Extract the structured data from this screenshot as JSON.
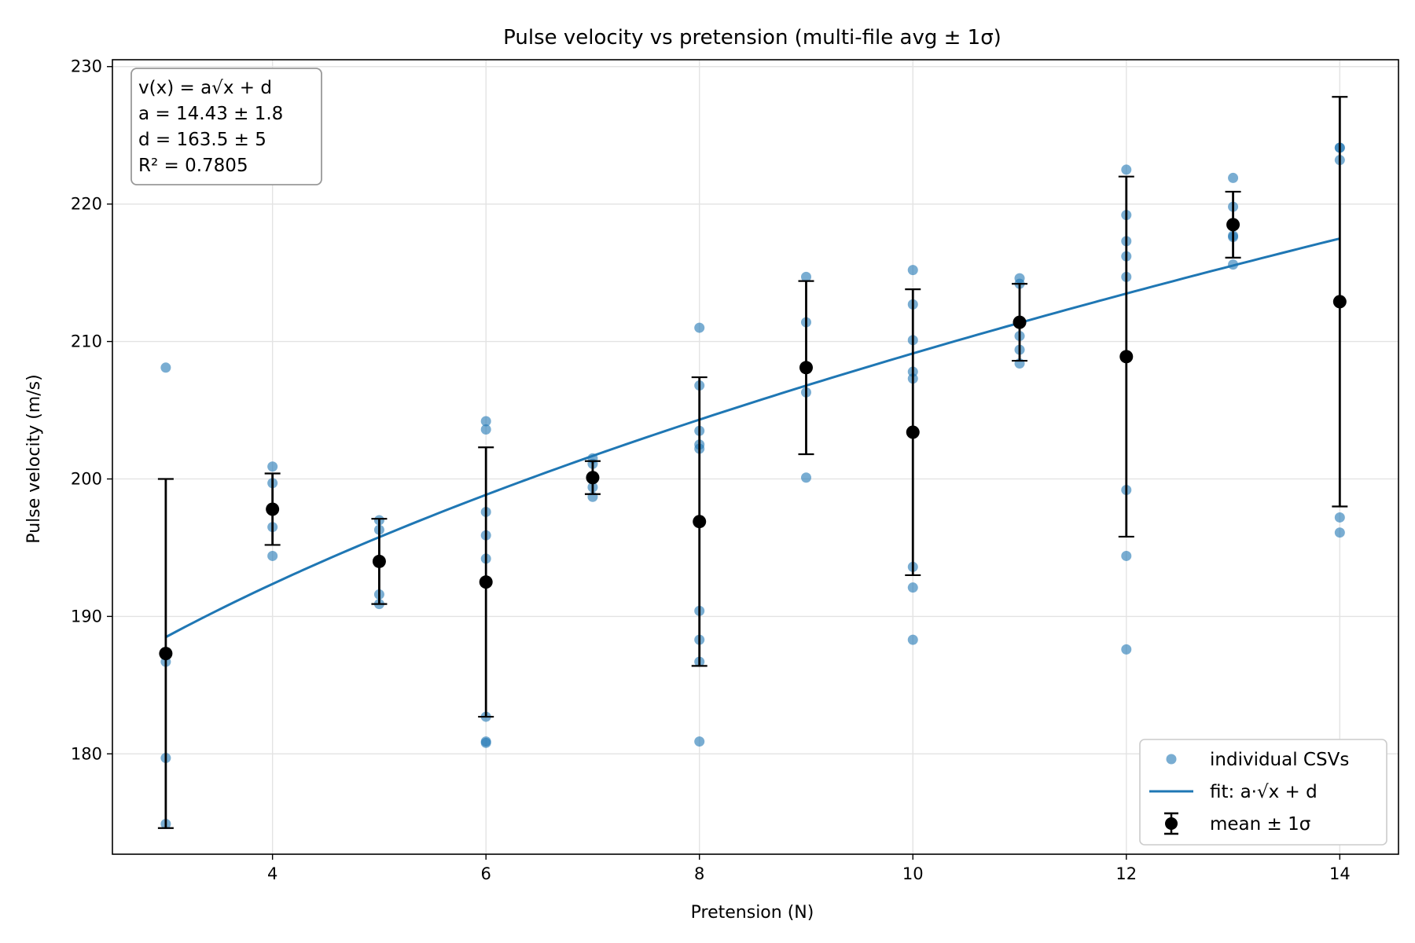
{
  "chart_data": {
    "type": "scatter",
    "title": "Pulse velocity vs pretension (multi-file avg ± 1σ)",
    "xlabel": "Pretension (N)",
    "ylabel": "Pulse velocity (m/s)",
    "xlim": [
      2.5,
      14.55
    ],
    "ylim": [
      172.7,
      230.5
    ],
    "xticks": [
      4,
      6,
      8,
      10,
      12,
      14
    ],
    "yticks": [
      180,
      190,
      200,
      210,
      220,
      230
    ],
    "grid": true,
    "legend_position": "lower-right",
    "colors": {
      "individual": "#1f77b4",
      "fit": "#1f77b4",
      "mean": "#000000"
    },
    "series": [
      {
        "name": "individual CSVs",
        "kind": "scatter",
        "points": [
          [
            3,
            208.1
          ],
          [
            3,
            186.7
          ],
          [
            3,
            179.7
          ],
          [
            3,
            174.9
          ],
          [
            4,
            200.9
          ],
          [
            4,
            199.7
          ],
          [
            4,
            196.5
          ],
          [
            4,
            194.4
          ],
          [
            5,
            197.0
          ],
          [
            5,
            196.3
          ],
          [
            5,
            191.6
          ],
          [
            5,
            190.9
          ],
          [
            6,
            204.2
          ],
          [
            6,
            203.6
          ],
          [
            6,
            197.6
          ],
          [
            6,
            195.9
          ],
          [
            6,
            194.2
          ],
          [
            6,
            182.7
          ],
          [
            6,
            180.9
          ],
          [
            6,
            180.8
          ],
          [
            7,
            201.5
          ],
          [
            7,
            201.1
          ],
          [
            7,
            199.4
          ],
          [
            7,
            198.7
          ],
          [
            8,
            211.0
          ],
          [
            8,
            206.8
          ],
          [
            8,
            203.5
          ],
          [
            8,
            202.5
          ],
          [
            8,
            202.2
          ],
          [
            8,
            190.4
          ],
          [
            8,
            188.3
          ],
          [
            8,
            186.7
          ],
          [
            8,
            180.9
          ],
          [
            9,
            214.7
          ],
          [
            9,
            211.4
          ],
          [
            9,
            206.3
          ],
          [
            9,
            200.1
          ],
          [
            10,
            215.2
          ],
          [
            10,
            212.7
          ],
          [
            10,
            210.1
          ],
          [
            10,
            207.8
          ],
          [
            10,
            207.3
          ],
          [
            10,
            193.6
          ],
          [
            10,
            192.1
          ],
          [
            10,
            188.3
          ],
          [
            11,
            214.6
          ],
          [
            11,
            214.2
          ],
          [
            11,
            211.5
          ],
          [
            11,
            210.4
          ],
          [
            11,
            209.4
          ],
          [
            11,
            208.4
          ],
          [
            12,
            222.5
          ],
          [
            12,
            219.2
          ],
          [
            12,
            217.3
          ],
          [
            12,
            216.2
          ],
          [
            12,
            214.7
          ],
          [
            12,
            199.2
          ],
          [
            12,
            194.4
          ],
          [
            12,
            187.6
          ],
          [
            13,
            221.9
          ],
          [
            13,
            219.8
          ],
          [
            13,
            217.7
          ],
          [
            13,
            217.6
          ],
          [
            13,
            215.6
          ],
          [
            14,
            224.1
          ],
          [
            14,
            224.1
          ],
          [
            14,
            223.2
          ],
          [
            14,
            197.2
          ],
          [
            14,
            196.1
          ]
        ]
      },
      {
        "name": "fit: a·√x + d",
        "kind": "line",
        "a": 14.43,
        "d": 163.5,
        "x_range": [
          3,
          14
        ]
      },
      {
        "name": "mean ± 1σ",
        "kind": "errorbar",
        "x": [
          3,
          4,
          5,
          6,
          7,
          8,
          9,
          10,
          11,
          12,
          13,
          14
        ],
        "mean": [
          187.3,
          197.8,
          194.0,
          192.5,
          200.1,
          196.9,
          208.1,
          203.4,
          211.4,
          208.9,
          218.5,
          212.9
        ],
        "err": [
          12.7,
          2.6,
          3.1,
          9.8,
          1.2,
          10.5,
          6.3,
          10.4,
          2.8,
          13.1,
          2.4,
          14.9
        ]
      }
    ],
    "annotation": {
      "line1_formula": "v(x) = a√x + d",
      "line2": "a = 14.43  ±  1.8",
      "line3": "d = 163.5  ±  5",
      "line4": "R² = 0.7805"
    }
  }
}
